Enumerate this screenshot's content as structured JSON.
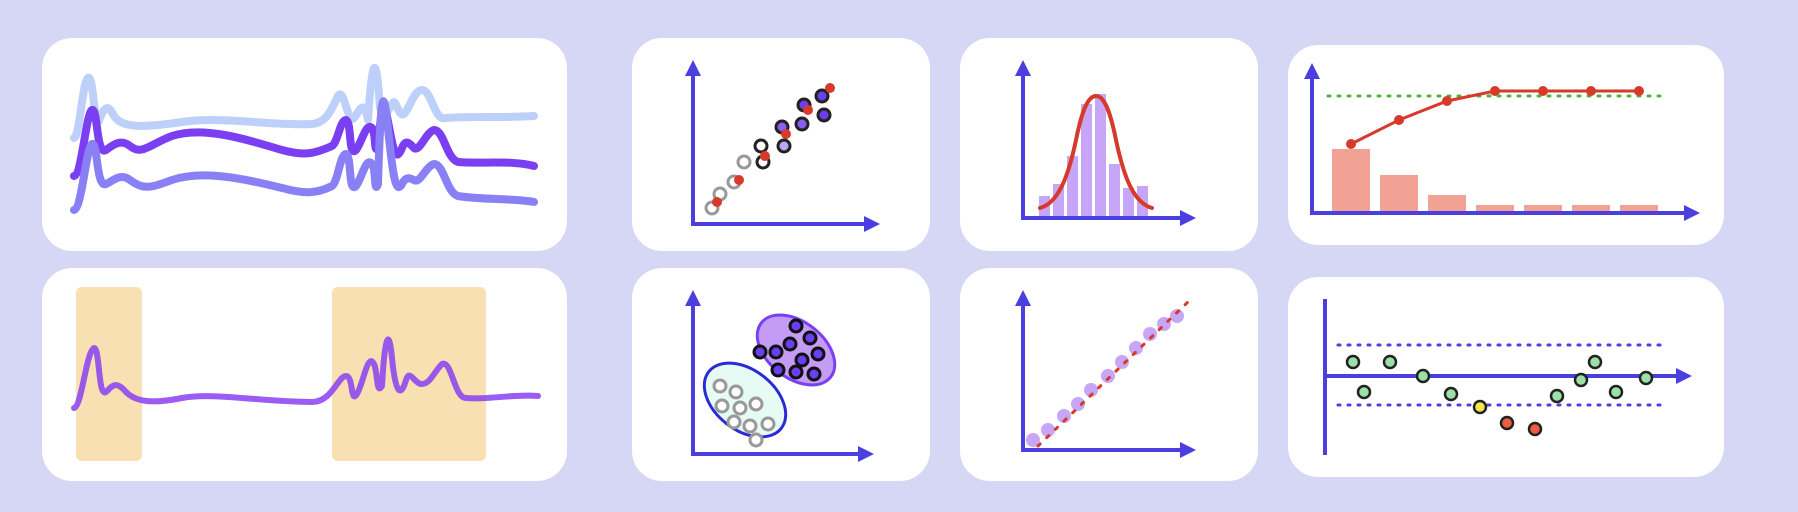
{
  "colors": {
    "background": "#d6d6f5",
    "card": "#ffffff",
    "axis": "#4b3fe0",
    "accent_red": "#d63a2a",
    "purple_dark": "#7b3ff2",
    "purple_mid": "#8a80f5",
    "purple_light": "#bcd0fa",
    "highlight_band": "#f9e0b3",
    "pareto_bar": "#f2a294",
    "target_line": "#4fb33a",
    "hist_bar": "#c7a6f7",
    "point_green": "#9be0a8",
    "point_yellow": "#f2e84a",
    "point_red": "#ef5c3f"
  },
  "icons": [
    "overlaid-spectra-icon",
    "highlighted-peak-regions-icon",
    "scatter-correlation-icon",
    "cluster-ellipses-icon",
    "histogram-normal-curve-icon",
    "qq-plot-icon",
    "pareto-chart-icon",
    "control-chart-icon"
  ]
}
